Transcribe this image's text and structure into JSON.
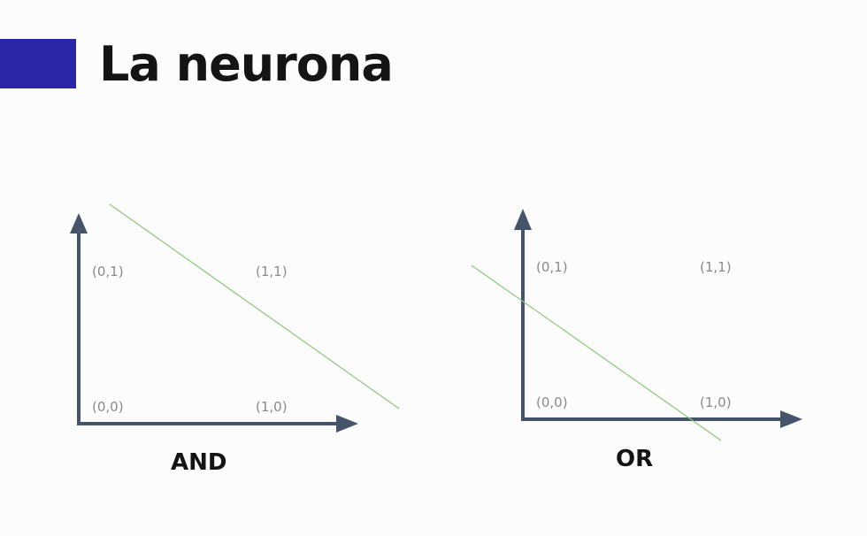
{
  "slide": {
    "title": "La neurona",
    "accent_color": "#2a26a8"
  },
  "colors": {
    "axis": "#44546a",
    "separator_line": "#8cc67a",
    "point_label": "#8a8a8a",
    "caption": "#141414"
  },
  "diagrams": {
    "and": {
      "caption": "AND",
      "points": {
        "p01": "(0,1)",
        "p11": "(1,1)",
        "p00": "(0,0)",
        "p10": "(1,0)"
      }
    },
    "or": {
      "caption": "OR",
      "points": {
        "p01": "(0,1)",
        "p11": "(1,1)",
        "p00": "(0,0)",
        "p10": "(1,0)"
      }
    }
  }
}
